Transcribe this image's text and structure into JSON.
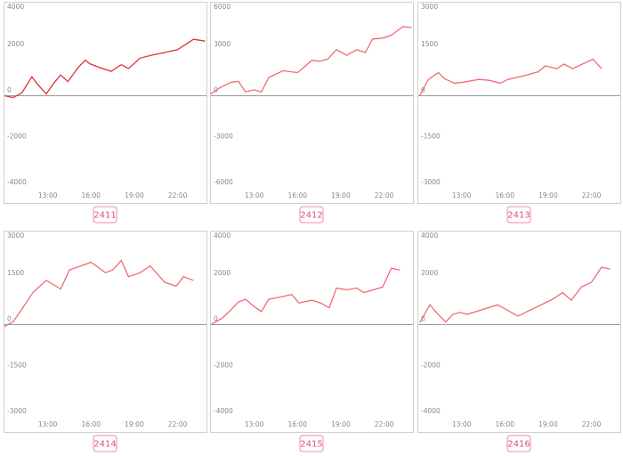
{
  "chart_data": [
    {
      "type": "line",
      "title": "2411",
      "xlim": [
        10,
        24
      ],
      "ylim": [
        -4000,
        4000
      ],
      "yticks": [
        -4000,
        -2000,
        0,
        2000,
        4000
      ],
      "xticks": [
        {
          "value": 13,
          "label": "13:00"
        },
        {
          "value": 16,
          "label": "16:00"
        },
        {
          "value": 19,
          "label": "19:00"
        },
        {
          "value": 22,
          "label": "22:00"
        }
      ],
      "grid": false,
      "series": [
        {
          "color": "#e0303c",
          "x": [
            10,
            10.6,
            11.2,
            11.9,
            12.3,
            12.9,
            13.4,
            13.9,
            14.4,
            15.1,
            15.6,
            15.9,
            16.6,
            17.4,
            18.1,
            18.6,
            19.4,
            20.2,
            21.1,
            22.0,
            23.1,
            23.9
          ],
          "values": [
            0,
            -80,
            120,
            820,
            490,
            80,
            530,
            900,
            610,
            1220,
            1550,
            1390,
            1220,
            1060,
            1350,
            1180,
            1630,
            1760,
            1880,
            2000,
            2450,
            2370
          ]
        }
      ]
    },
    {
      "type": "line",
      "title": "2412",
      "xlim": [
        10,
        24
      ],
      "ylim": [
        -6000,
        6000
      ],
      "yticks": [
        -6000,
        -3000,
        0,
        3000,
        6000
      ],
      "xticks": [
        {
          "value": 13,
          "label": "13:00"
        },
        {
          "value": 16,
          "label": "16:00"
        },
        {
          "value": 19,
          "label": "19:00"
        },
        {
          "value": 22,
          "label": "22:00"
        }
      ],
      "grid": false,
      "series": [
        {
          "color": "#f26a74",
          "x": [
            10.0,
            10.7,
            11.4,
            11.9,
            12.4,
            13.0,
            13.5,
            14.0,
            15.0,
            16.0,
            17.0,
            17.5,
            18.1,
            18.7,
            19.4,
            20.1,
            20.7,
            21.2,
            21.9,
            22.5,
            23.3,
            23.9
          ],
          "values": [
            130,
            560,
            880,
            940,
            250,
            380,
            250,
            1190,
            1630,
            1500,
            2310,
            2250,
            2380,
            3000,
            2630,
            3000,
            2810,
            3690,
            3750,
            3940,
            4500,
            4440
          ]
        }
      ]
    },
    {
      "type": "line",
      "title": "2413",
      "xlim": [
        10,
        24
      ],
      "ylim": [
        -3000,
        3000
      ],
      "yticks": [
        -3000,
        -1500,
        0,
        1500,
        3000
      ],
      "xticks": [
        {
          "value": 13,
          "label": "13:00"
        },
        {
          "value": 16,
          "label": "16:00"
        },
        {
          "value": 19,
          "label": "19:00"
        },
        {
          "value": 22,
          "label": "22:00"
        }
      ],
      "grid": false,
      "series": [
        {
          "color": "#f26a74",
          "x": [
            10.1,
            10.7,
            11.4,
            11.8,
            12.5,
            13.1,
            14.2,
            14.9,
            15.7,
            16.2,
            17.4,
            18.3,
            18.8,
            19.6,
            20.1,
            20.7,
            22.1,
            22.7
          ],
          "values": [
            0,
            530,
            750,
            560,
            410,
            440,
            530,
            500,
            410,
            530,
            660,
            780,
            970,
            880,
            1030,
            880,
            1190,
            880
          ]
        }
      ]
    },
    {
      "type": "line",
      "title": "2414",
      "xlim": [
        10,
        24
      ],
      "ylim": [
        -3000,
        3000
      ],
      "yticks": [
        -3000,
        -1500,
        0,
        1500,
        3000
      ],
      "xticks": [
        {
          "value": 13,
          "label": "13:00"
        },
        {
          "value": 16,
          "label": "16:00"
        },
        {
          "value": 19,
          "label": "19:00"
        },
        {
          "value": 22,
          "label": "22:00"
        }
      ],
      "grid": false,
      "series": [
        {
          "color": "#f26a74",
          "x": [
            10,
            10.6,
            11.2,
            12.0,
            12.9,
            13.9,
            14.5,
            16.0,
            17.0,
            17.5,
            18.1,
            18.6,
            19.4,
            20.1,
            21.1,
            21.9,
            22.4,
            23.1
          ],
          "values": [
            -60,
            90,
            500,
            1060,
            1440,
            1160,
            1780,
            2030,
            1690,
            1780,
            2090,
            1560,
            1690,
            1910,
            1380,
            1250,
            1560,
            1440
          ]
        }
      ]
    },
    {
      "type": "line",
      "title": "2415",
      "xlim": [
        10,
        24
      ],
      "ylim": [
        -4000,
        4000
      ],
      "yticks": [
        -4000,
        -2000,
        0,
        2000,
        4000
      ],
      "xticks": [
        {
          "value": 13,
          "label": "13:00"
        },
        {
          "value": 16,
          "label": "16:00"
        },
        {
          "value": 19,
          "label": "19:00"
        },
        {
          "value": 22,
          "label": "22:00"
        }
      ],
      "grid": false,
      "series": [
        {
          "color": "#f26a74",
          "x": [
            10,
            10.8,
            11.4,
            11.9,
            12.4,
            13.0,
            13.5,
            14.0,
            15.0,
            15.6,
            16.1,
            17.0,
            17.6,
            18.2,
            18.7,
            19.4,
            20.1,
            20.6,
            21.9,
            22.5,
            23.1
          ],
          "values": [
            0,
            290,
            650,
            980,
            1100,
            780,
            570,
            1100,
            1220,
            1310,
            940,
            1060,
            940,
            730,
            1590,
            1510,
            1590,
            1390,
            1630,
            2450,
            2370
          ]
        }
      ]
    },
    {
      "type": "line",
      "title": "2416",
      "xlim": [
        10,
        24
      ],
      "ylim": [
        -4000,
        4000
      ],
      "yticks": [
        -4000,
        -2000,
        0,
        2000,
        4000
      ],
      "xticks": [
        {
          "value": 13,
          "label": "13:00"
        },
        {
          "value": 16,
          "label": "16:00"
        },
        {
          "value": 19,
          "label": "19:00"
        },
        {
          "value": 22,
          "label": "22:00"
        }
      ],
      "grid": false,
      "series": [
        {
          "color": "#f26a74",
          "x": [
            10.1,
            10.8,
            11.3,
            11.9,
            12.4,
            12.9,
            13.4,
            15.5,
            16.9,
            19.3,
            20.0,
            20.6,
            21.3,
            22.0,
            22.7,
            23.3
          ],
          "values": [
            80,
            860,
            490,
            120,
            450,
            530,
            450,
            860,
            370,
            1100,
            1390,
            1060,
            1630,
            1840,
            2490,
            2410
          ]
        }
      ]
    }
  ]
}
